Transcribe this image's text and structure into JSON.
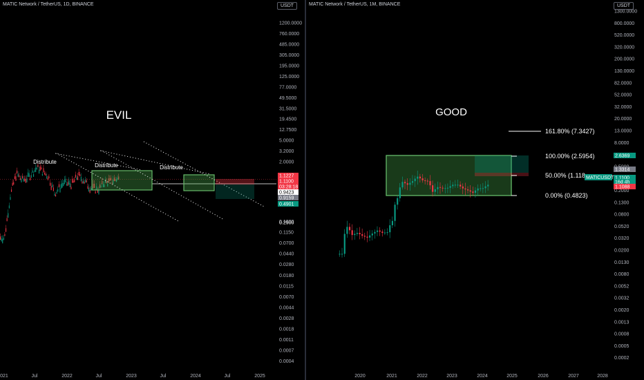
{
  "left": {
    "title": "MATIC Network / TetherUS, 1D, BINANCE",
    "currency": "USDT",
    "heading": "EVIL",
    "distribute_labels": [
      "Distribute",
      "Distribute",
      "Distribute"
    ],
    "y_ticks": [
      "1200.0000",
      "760.0000",
      "485.0000",
      "305.0000",
      "195.0000",
      "125.0000",
      "77.0000",
      "49.5000",
      "31.5000",
      "19.4500",
      "12.7500",
      "5.0000",
      "3.2000",
      "2.0000",
      "0.1800",
      "0.1150",
      "0.0700",
      "0.0440",
      "0.0280",
      "0.0180",
      "0.0115",
      "0.0070",
      "0.0044",
      "0.0028",
      "0.0018",
      "0.0011",
      "0.0007",
      "0.0004"
    ],
    "x_ticks": [
      "2021",
      "Jul",
      "2022",
      "Jul",
      "2023",
      "Jul",
      "2024",
      "Jul",
      "2025"
    ],
    "price_tags": [
      {
        "text": "1.1227",
        "color": "#f23645"
      },
      {
        "text": "1.1100",
        "color": "#f23645"
      },
      {
        "text": "03:28:18",
        "color": "#f23645"
      },
      {
        "text": "0.9423",
        "color": "#ffffff",
        "dark": true
      },
      {
        "text": "0.9159",
        "color": "#787b86"
      },
      {
        "text": "0.4901",
        "color": "#089981"
      },
      {
        "text": "0.2900",
        "color": "none"
      }
    ]
  },
  "right": {
    "title": "MATIC Network / TetherUS, 1M, BINANCE",
    "currency": "USDT",
    "heading": "GOOD",
    "y_ticks": [
      "1300.0000",
      "800.0000",
      "520.0000",
      "320.0000",
      "200.0000",
      "130.0000",
      "82.0000",
      "52.0000",
      "32.0000",
      "20.0000",
      "13.0000",
      "8.0000",
      "3.2000",
      "0.5000",
      "0.3200",
      "0.2000",
      "0.1300",
      "0.0800",
      "0.0520",
      "0.0320",
      "0.0200",
      "0.0130",
      "0.0080",
      "0.0052",
      "0.0032",
      "0.0020",
      "0.0013",
      "0.0008",
      "0.0005",
      "0.0002"
    ],
    "x_ticks": [
      "2020",
      "2021",
      "2022",
      "2023",
      "2024",
      "2025",
      "2026",
      "2027",
      "2028"
    ],
    "fib_levels": [
      {
        "label": "161.80% (7.3427)"
      },
      {
        "label": "100.00% (2.5954)"
      },
      {
        "label": "50.00% (1.118"
      },
      {
        "label": "0.00% (0.4823)"
      }
    ],
    "price_tags": [
      {
        "text": "2.6369",
        "color": "#089981"
      },
      {
        "text": "1.3314",
        "color": "#787b86"
      },
      {
        "text": "1.1100",
        "color": "#089981"
      },
      {
        "text": "16d 4h",
        "color": "#089981"
      },
      {
        "text": "1.1088",
        "color": "#f23645"
      }
    ],
    "symbol_tag": "MATICUSDT"
  },
  "chart_data": [
    {
      "type": "line",
      "title": "MATIC Network / TetherUS, 1D, BINANCE",
      "annotation": "EVIL",
      "x": [
        "2021-01",
        "2021-03",
        "2021-05",
        "2021-07",
        "2021-09",
        "2021-12",
        "2022-01",
        "2022-04",
        "2022-06",
        "2022-09",
        "2022-12",
        "2023-02",
        "2023-04",
        "2023-06",
        "2023-09",
        "2023-11",
        "2024-01",
        "2024-03",
        "2024-04"
      ],
      "series": [
        {
          "values": [
            0.018,
            0.35,
            1.6,
            1.0,
            1.2,
            2.4,
            2.2,
            1.3,
            0.4,
            0.8,
            0.75,
            1.4,
            1.0,
            0.6,
            0.52,
            0.85,
            0.9,
            1.1,
            1.11
          ]
        }
      ],
      "y_scale": "log"
    },
    {
      "type": "bar",
      "title": "MATIC Network / TetherUS, 1M, BINANCE",
      "annotation": "GOOD",
      "x": [
        "2019-05",
        "2019-07",
        "2019-09",
        "2019-11",
        "2020-01",
        "2020-03",
        "2020-05",
        "2020-07",
        "2020-09",
        "2020-11",
        "2021-01",
        "2021-03",
        "2021-05",
        "2021-07",
        "2021-09",
        "2021-11",
        "2022-01",
        "2022-03",
        "2022-05",
        "2022-07",
        "2022-09",
        "2022-11",
        "2023-01",
        "2023-03",
        "2023-05",
        "2023-07",
        "2023-09",
        "2023-11",
        "2024-01",
        "2024-03"
      ],
      "series": [
        {
          "values": [
            0.003,
            0.03,
            0.015,
            0.018,
            0.014,
            0.012,
            0.017,
            0.022,
            0.018,
            0.019,
            0.05,
            0.35,
            1.4,
            1.1,
            1.5,
            2.2,
            1.6,
            1.5,
            0.6,
            0.9,
            0.8,
            0.85,
            1.1,
            1.1,
            0.8,
            0.68,
            0.55,
            0.8,
            0.82,
            1.1
          ]
        }
      ],
      "fibonacci": [
        {
          "level": "161.80%",
          "price": 7.3427
        },
        {
          "level": "100.00%",
          "price": 2.5954
        },
        {
          "level": "0.00%",
          "price": 0.4823
        }
      ],
      "y_scale": "log"
    }
  ]
}
